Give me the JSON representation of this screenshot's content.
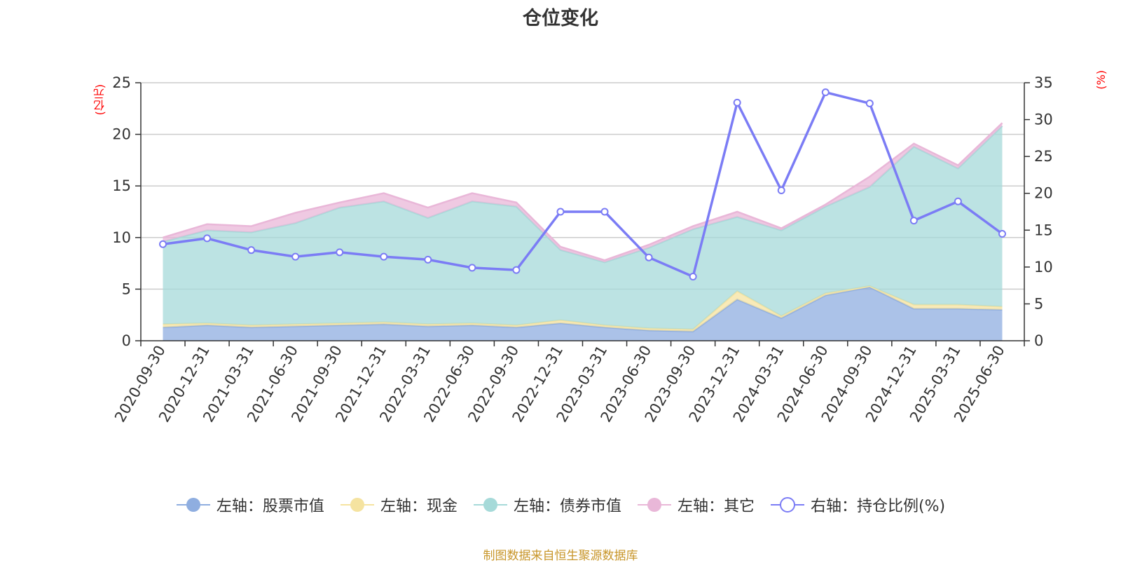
{
  "chart_data": {
    "type": "area",
    "title": "仓位变化",
    "left_axis_unit": "(亿元)",
    "right_axis_unit": "(%)",
    "ylim_left": [
      0,
      25
    ],
    "yticks_left": [
      "0",
      "5",
      "10",
      "15",
      "20",
      "25"
    ],
    "ylim_right": [
      0,
      35
    ],
    "yticks_right": [
      "0",
      "5",
      "10",
      "15",
      "20",
      "25",
      "30",
      "35"
    ],
    "grid": true,
    "legend_position": "bottom",
    "categories": [
      "2020-09-30",
      "2020-12-31",
      "2021-03-31",
      "2021-06-30",
      "2021-09-30",
      "2021-12-31",
      "2022-03-31",
      "2022-06-30",
      "2022-09-30",
      "2022-12-31",
      "2023-03-31",
      "2023-06-30",
      "2023-09-30",
      "2023-12-31",
      "2024-03-31",
      "2024-06-30",
      "2024-09-30",
      "2024-12-31",
      "2025-03-31",
      "2025-06-30"
    ],
    "series": [
      {
        "name": "左轴：股票市值",
        "axis": "left",
        "stack": true,
        "color": "#8faee0",
        "values": [
          1.3,
          1.5,
          1.3,
          1.4,
          1.5,
          1.6,
          1.4,
          1.5,
          1.3,
          1.7,
          1.3,
          1.0,
          0.9,
          4.0,
          2.2,
          4.4,
          5.2,
          3.1,
          3.1,
          3.0
        ]
      },
      {
        "name": "左轴：现金",
        "axis": "left",
        "stack": true,
        "color": "#f5e3a0",
        "values": [
          0.3,
          0.2,
          0.2,
          0.2,
          0.2,
          0.2,
          0.2,
          0.2,
          0.2,
          0.3,
          0.2,
          0.2,
          0.2,
          0.8,
          0.2,
          0.2,
          0.1,
          0.4,
          0.4,
          0.3
        ]
      },
      {
        "name": "左轴：债券市值",
        "axis": "left",
        "stack": true,
        "color": "#a6dad9",
        "values": [
          8.0,
          9.0,
          9.0,
          9.8,
          11.2,
          11.7,
          10.3,
          11.8,
          11.5,
          6.8,
          6.1,
          7.8,
          9.7,
          7.2,
          8.3,
          8.4,
          9.6,
          15.3,
          13.2,
          17.5
        ]
      },
      {
        "name": "左轴：其它",
        "axis": "left",
        "stack": true,
        "color": "#e9b7d8",
        "values": [
          0.4,
          0.6,
          0.6,
          1.0,
          0.5,
          0.8,
          1.0,
          0.8,
          0.4,
          0.3,
          0.2,
          0.3,
          0.3,
          0.5,
          0.2,
          0.2,
          1.0,
          0.3,
          0.3,
          0.3
        ]
      },
      {
        "name": "右轴：持仓比例(%)",
        "axis": "right",
        "type": "line",
        "color": "#7b7cf5",
        "values": [
          13.1,
          13.9,
          12.3,
          11.4,
          12.0,
          11.4,
          11.0,
          9.9,
          9.6,
          17.5,
          17.5,
          11.3,
          8.7,
          32.3,
          20.4,
          33.7,
          32.2,
          16.3,
          18.9,
          14.5
        ]
      }
    ]
  },
  "source_note": "制图数据来自恒生聚源数据库"
}
